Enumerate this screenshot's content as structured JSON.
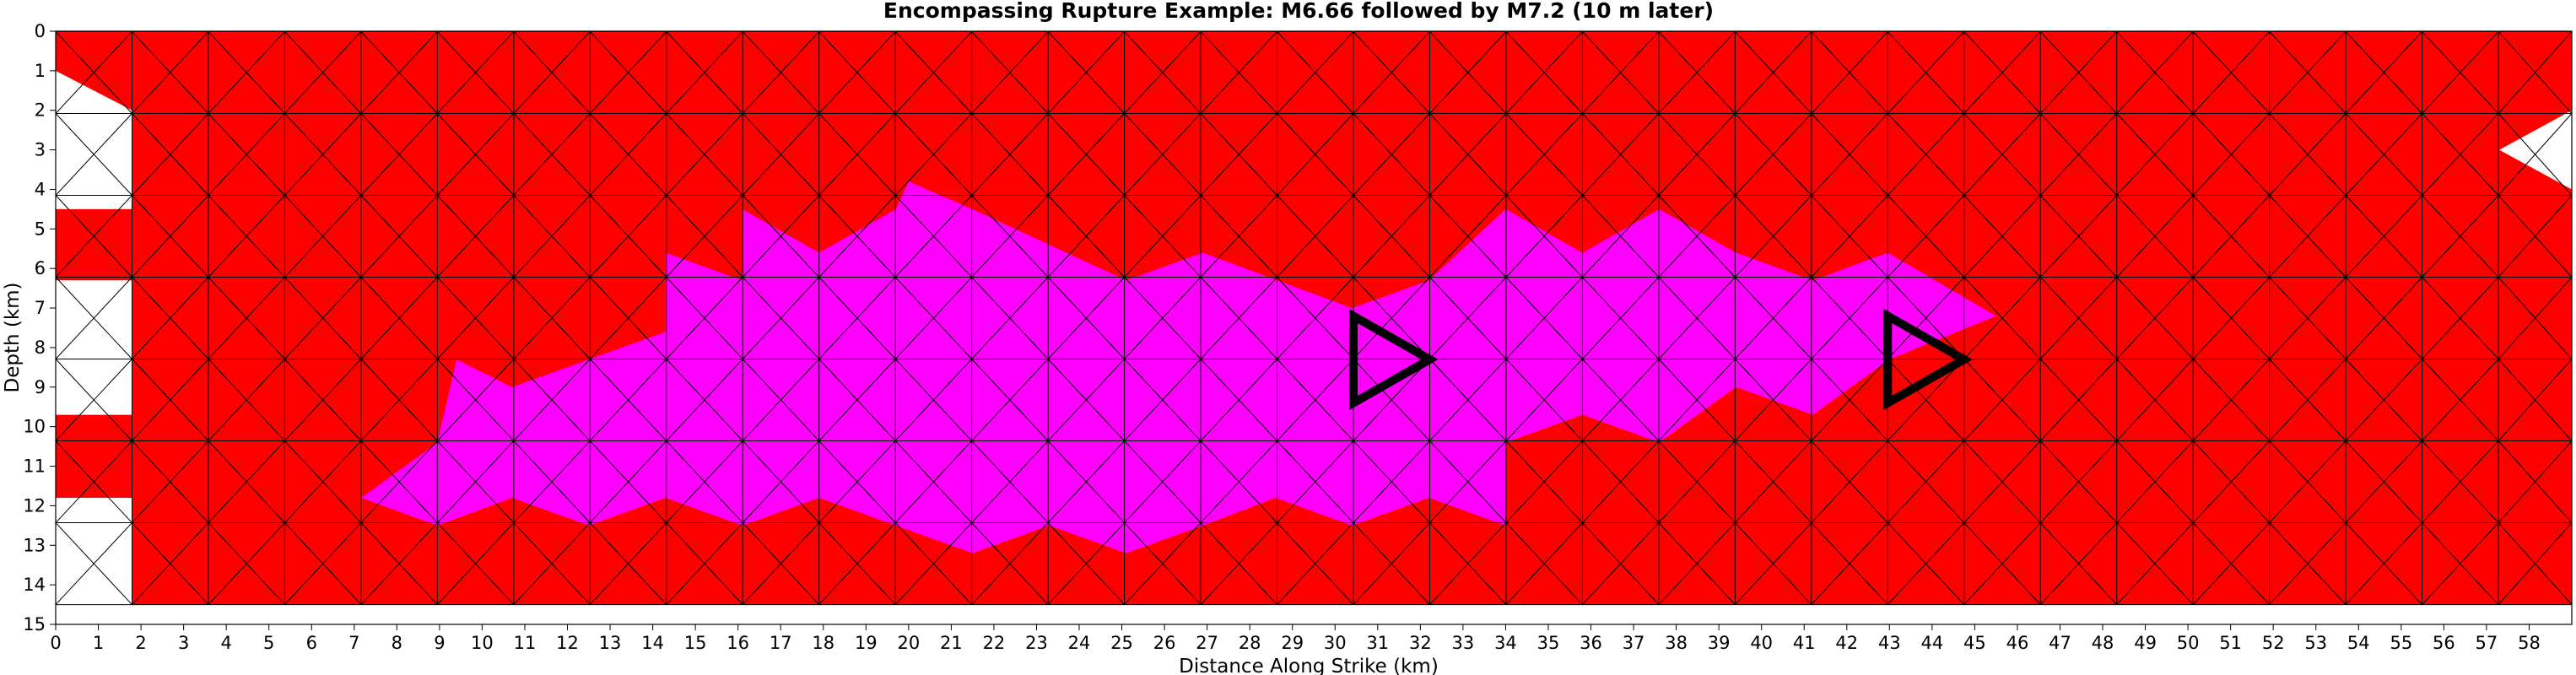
{
  "chart_data": {
    "type": "heatmap",
    "title": "Encompassing Rupture Example: M6.66 followed by M7.2 (10 m later)",
    "xlabel": "Distance Along Strike (km)",
    "ylabel": "Depth (km)",
    "xlim": [
      0,
      59
    ],
    "ylim": [
      15,
      0
    ],
    "y_inverted": true,
    "x_ticks": [
      "0",
      "1",
      "2",
      "3",
      "4",
      "5",
      "6",
      "7",
      "8",
      "9",
      "10",
      "11",
      "12",
      "13",
      "14",
      "15",
      "16",
      "17",
      "18",
      "19",
      "20",
      "21",
      "22",
      "23",
      "24",
      "25",
      "26",
      "27",
      "28",
      "29",
      "30",
      "31",
      "32",
      "33",
      "34",
      "35",
      "36",
      "37",
      "38",
      "39",
      "40",
      "41",
      "42",
      "43",
      "44",
      "45",
      "46",
      "47",
      "48",
      "49",
      "50",
      "51",
      "52",
      "53",
      "54",
      "55",
      "56",
      "57",
      "58"
    ],
    "y_ticks": [
      "0",
      "1",
      "2",
      "3",
      "4",
      "5",
      "6",
      "7",
      "8",
      "9",
      "10",
      "11",
      "12",
      "13",
      "14",
      "15"
    ],
    "grid": false,
    "mesh": {
      "element": "triangle",
      "x_nodes_km": [
        0,
        1.79,
        3.58,
        5.37,
        7.16,
        8.95,
        10.74,
        12.53,
        14.32,
        16.11,
        17.9,
        19.69,
        21.48,
        23.27,
        25.06,
        26.85,
        28.64,
        30.43,
        32.22,
        34.01,
        35.8,
        37.59,
        39.38,
        41.17,
        42.96,
        44.75,
        46.54,
        48.33,
        50.12,
        51.91,
        53.7,
        55.49,
        57.28,
        59.07
      ],
      "bottom_depth_km": 14.5,
      "row_height_km": 2.07,
      "outline_color": "#000000"
    },
    "series": [
      {
        "name": "M6.66",
        "color": "#ff0000",
        "region": "all fault elements outside the M7.2 patch"
      },
      {
        "name": "M7.2",
        "color": "#ff00ff",
        "region_polygon": [
          [
            14.3,
            5.6
          ],
          [
            16.1,
            6.3
          ],
          [
            16.1,
            4.5
          ],
          [
            17.9,
            5.6
          ],
          [
            19.7,
            4.5
          ],
          [
            20.0,
            3.8
          ],
          [
            21.5,
            4.5
          ],
          [
            25.1,
            6.3
          ],
          [
            26.9,
            5.6
          ],
          [
            30.4,
            7.0
          ],
          [
            32.2,
            6.3
          ],
          [
            34.0,
            4.5
          ],
          [
            35.8,
            5.6
          ],
          [
            37.6,
            4.5
          ],
          [
            39.4,
            5.6
          ],
          [
            41.2,
            6.3
          ],
          [
            42.96,
            5.6
          ],
          [
            45.5,
            7.2
          ],
          [
            43.0,
            8.3
          ],
          [
            41.2,
            9.7
          ],
          [
            39.4,
            9.0
          ],
          [
            37.6,
            10.4
          ],
          [
            35.8,
            9.7
          ],
          [
            34.0,
            10.4
          ],
          [
            34.0,
            12.5
          ],
          [
            32.2,
            11.8
          ],
          [
            30.4,
            12.5
          ],
          [
            28.6,
            11.8
          ],
          [
            26.9,
            12.5
          ],
          [
            25.1,
            13.2
          ],
          [
            23.3,
            12.5
          ],
          [
            21.5,
            13.2
          ],
          [
            19.7,
            12.5
          ],
          [
            17.9,
            11.8
          ],
          [
            16.1,
            12.5
          ],
          [
            14.3,
            11.8
          ],
          [
            12.5,
            12.5
          ],
          [
            10.7,
            11.8
          ],
          [
            8.95,
            12.5
          ],
          [
            7.16,
            11.8
          ],
          [
            8.95,
            10.4
          ],
          [
            9.4,
            8.3
          ],
          [
            10.7,
            9.0
          ],
          [
            12.5,
            8.3
          ],
          [
            14.3,
            7.6
          ]
        ]
      }
    ],
    "markers": [
      {
        "shape": "triangle",
        "outline": "#000000",
        "vertices": [
          [
            30.43,
            7.2
          ],
          [
            32.22,
            8.3
          ],
          [
            30.43,
            9.4
          ]
        ]
      },
      {
        "shape": "triangle",
        "outline": "#000000",
        "vertices": [
          [
            42.96,
            7.2
          ],
          [
            44.75,
            8.3
          ],
          [
            42.96,
            9.4
          ]
        ]
      }
    ]
  }
}
